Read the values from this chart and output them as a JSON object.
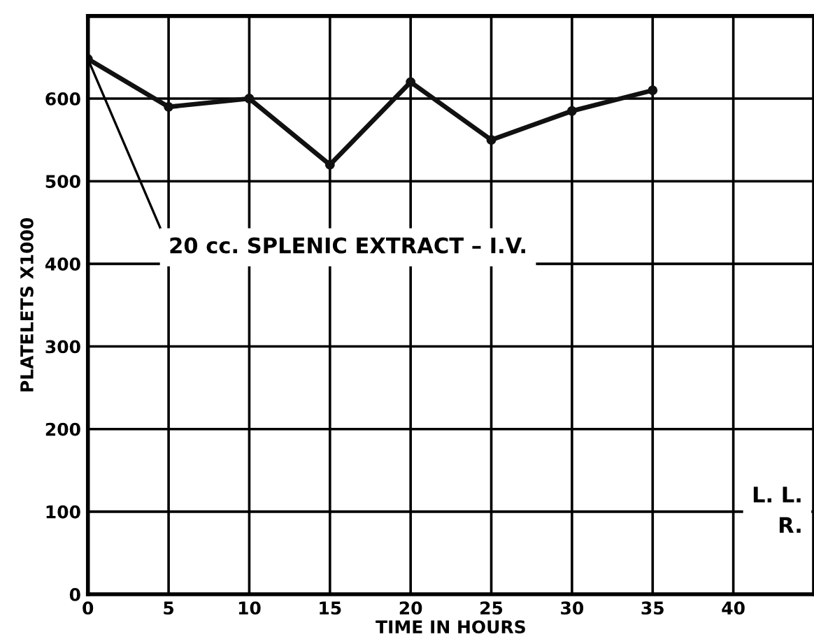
{
  "chart_data": {
    "type": "line",
    "xlabel": "TIME IN HOURS",
    "ylabel": "PLATELETS X1000",
    "x": [
      0,
      5,
      10,
      15,
      20,
      25,
      30,
      35
    ],
    "series": [
      {
        "color": "#111111",
        "values": [
          648,
          590,
          600,
          520,
          620,
          550,
          585,
          610
        ]
      }
    ],
    "xlim": [
      0,
      45
    ],
    "ylim": [
      0,
      700
    ],
    "xticks": [
      0,
      5,
      10,
      15,
      20,
      25,
      30,
      35,
      40
    ],
    "yticks": [
      0,
      100,
      200,
      300,
      400,
      500,
      600,
      {
        "value": 700,
        "label": null
      }
    ],
    "grid": true,
    "marker": "circle",
    "line_style": "solid",
    "annotations": [
      {
        "text": "20 cc. SPLENIC EXTRACT – I.V.",
        "x": 0,
        "y": 648
      },
      "L. L.\nR."
    ]
  }
}
